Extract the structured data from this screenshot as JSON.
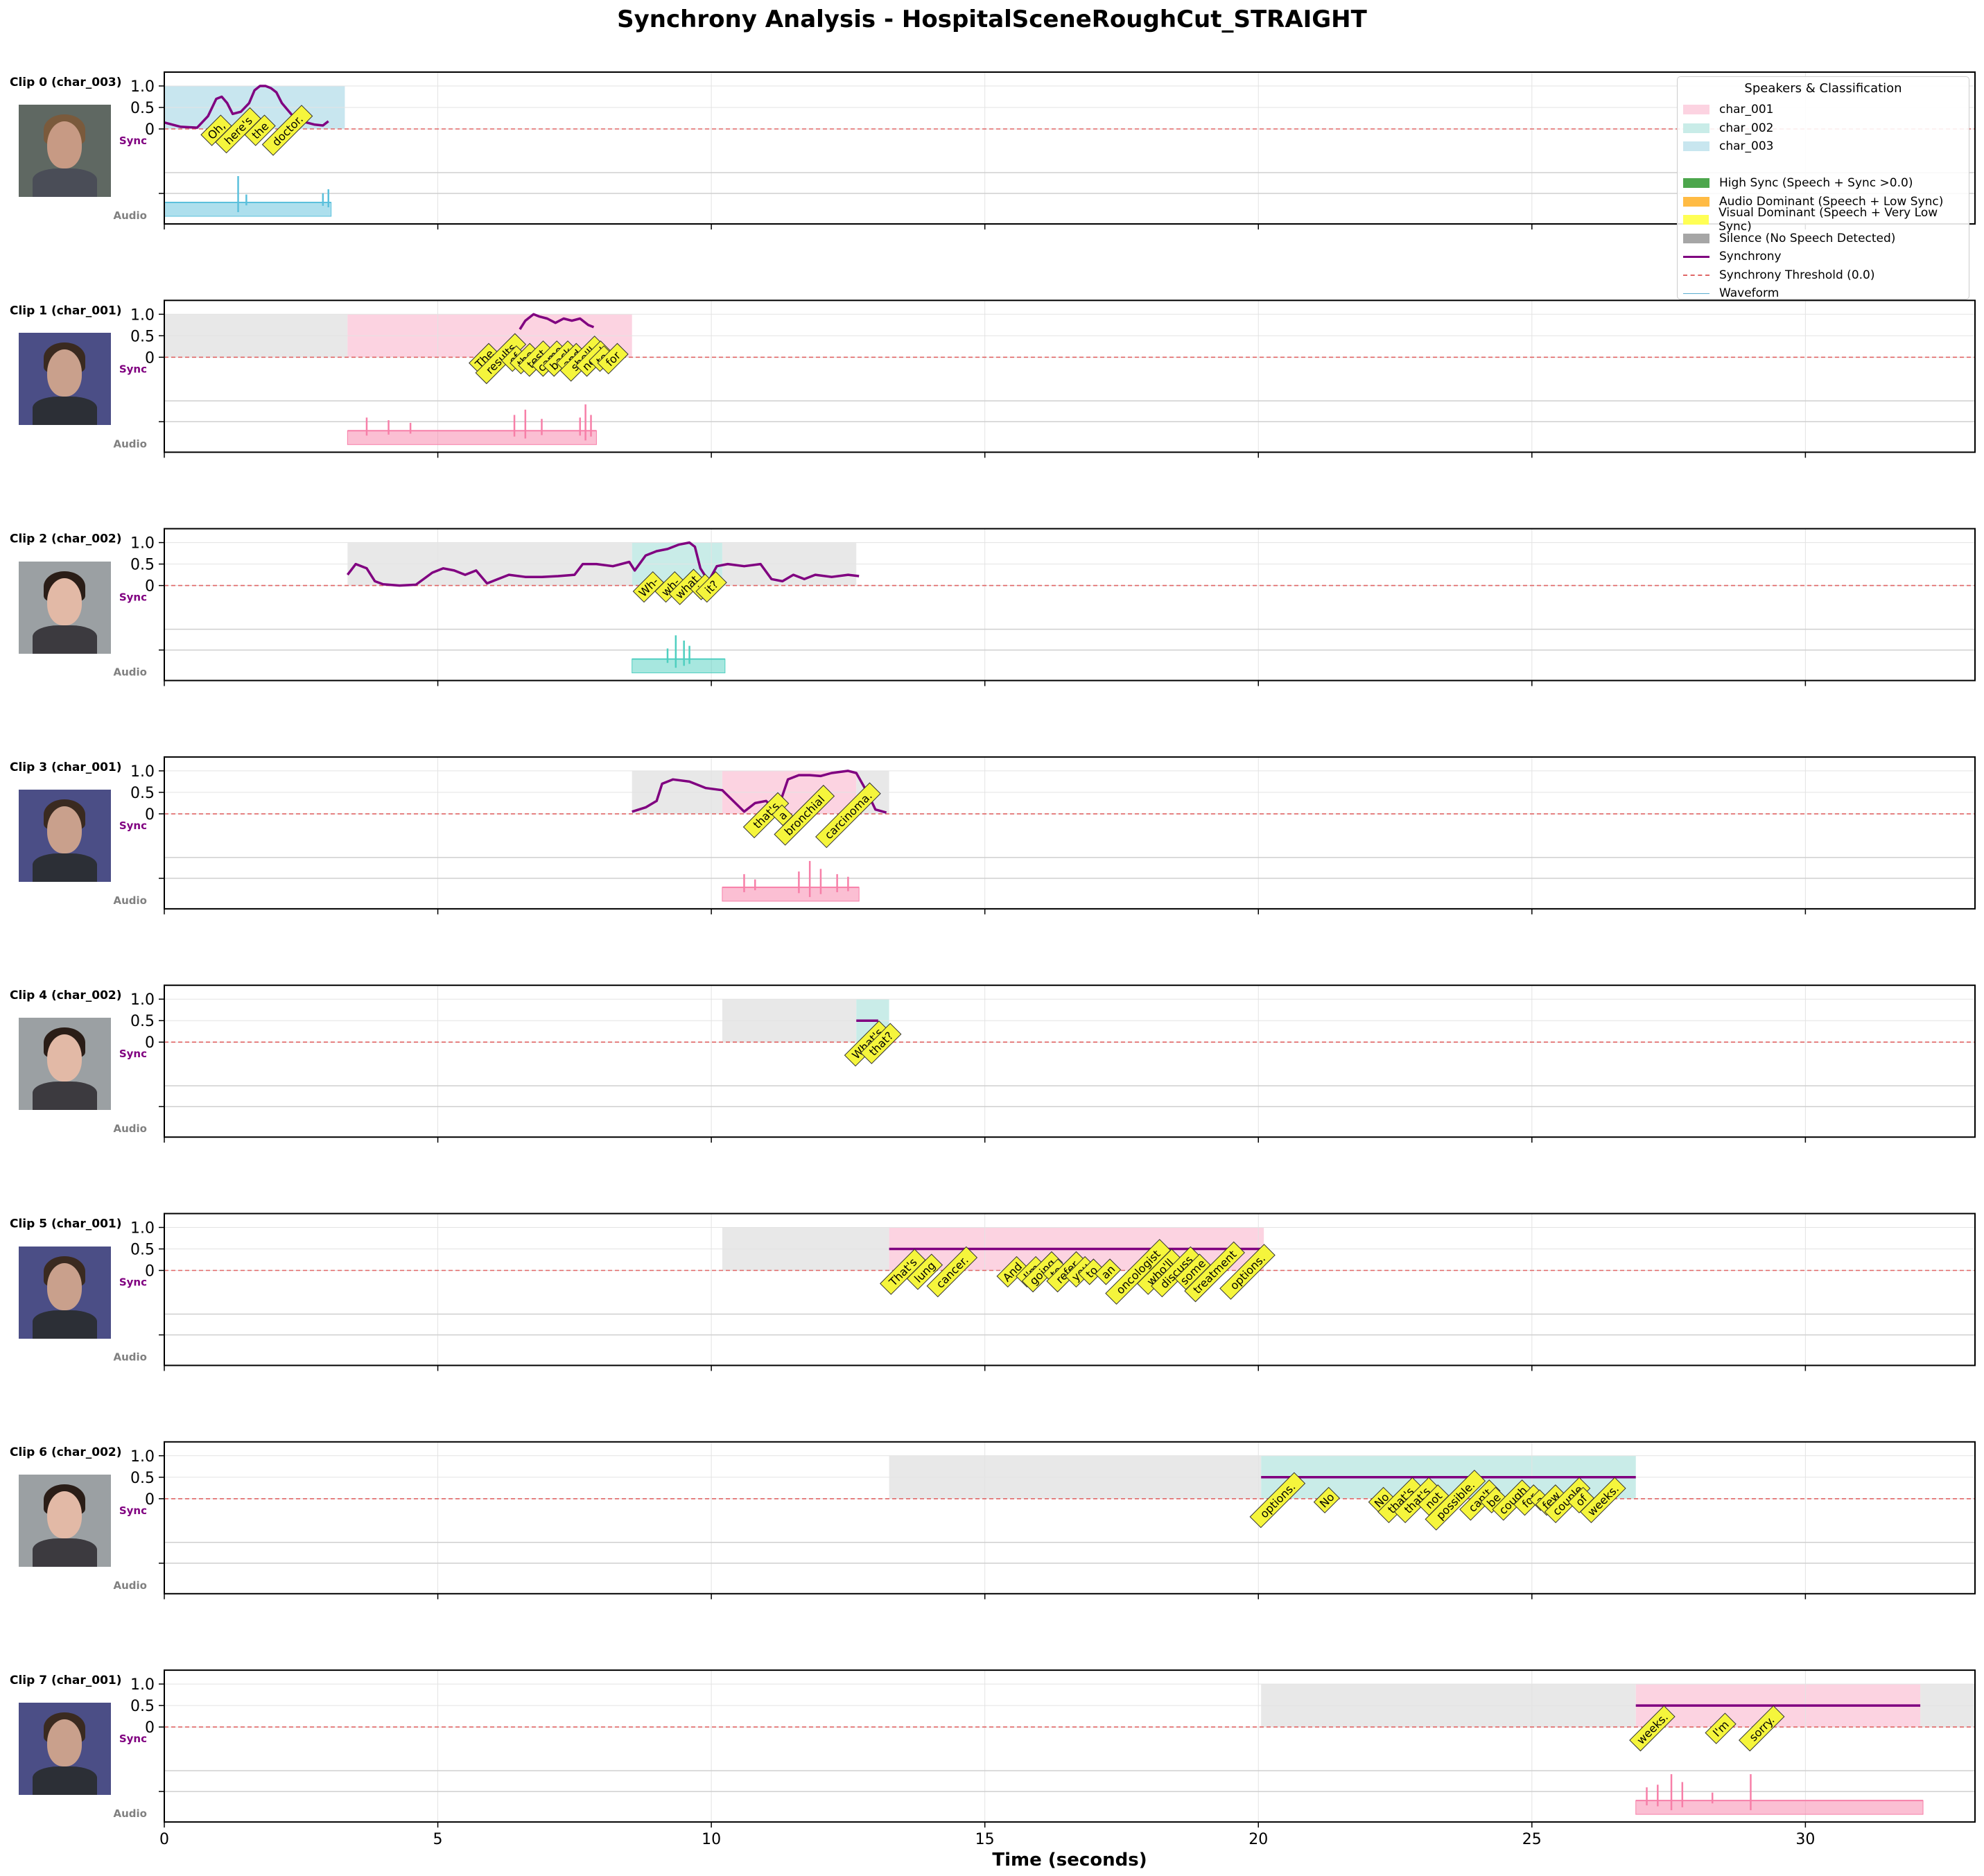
{
  "title": "Synchrony Analysis - HospitalSceneRoughCut_STRAIGHT",
  "xlabel": "Time (seconds)",
  "legend": {
    "title": "Speakers & Classification",
    "items": [
      {
        "label": "char_001",
        "kind": "patch",
        "color": "#fcd3e1"
      },
      {
        "label": "char_002",
        "kind": "patch",
        "color": "#c9ece8"
      },
      {
        "label": "char_003",
        "kind": "patch",
        "color": "#c8e6ef"
      },
      {
        "label": "",
        "kind": "blank",
        "color": ""
      },
      {
        "label": "High Sync (Speech + Sync >0.0)",
        "kind": "patch",
        "color": "#4ca64c"
      },
      {
        "label": "Audio Dominant (Speech + Low Sync)",
        "kind": "patch",
        "color": "#ffbb44"
      },
      {
        "label": "Visual Dominant (Speech + Very Low Sync)",
        "kind": "patch",
        "color": "#ffff55"
      },
      {
        "label": "Silence (No Speech Detected)",
        "kind": "patch",
        "color": "#a6a6a6"
      },
      {
        "label": "Synchrony",
        "kind": "line",
        "color": "#800080"
      },
      {
        "label": "Synchrony Threshold (0.0)",
        "kind": "dash",
        "color": "#e06666"
      },
      {
        "label": "Waveform",
        "kind": "thin",
        "color": "#5aaed0"
      }
    ]
  },
  "colors": {
    "char_001": "#f77fa8",
    "char_001_bg": "#fcd3e1",
    "char_002": "#4fcfc0",
    "char_002_bg": "#c9ece8",
    "char_003": "#5bc0dc",
    "char_003_bg": "#c8e6ef",
    "silence_bg": "#e8e8e8",
    "sync": "#800080",
    "threshold": "#e06666",
    "word_box": "#f5f53c"
  },
  "chart_data": {
    "type": "line",
    "xlim": [
      0,
      33.1
    ],
    "x_ticks": [
      0,
      5,
      10,
      15,
      20,
      25,
      30
    ],
    "y_ticks": [
      "0",
      "0.5",
      "1.0"
    ],
    "sync_label": "Sync",
    "audio_label": "Audio",
    "threshold": 0.0,
    "clips": [
      {
        "label": "Clip 0 (char_003)",
        "speaker": "char_003",
        "context": [],
        "speech": [
          0.0,
          3.3
        ],
        "sync": {
          "x": [
            0,
            0.3,
            0.6,
            0.8,
            0.95,
            1.05,
            1.15,
            1.25,
            1.4,
            1.55,
            1.65,
            1.75,
            1.85,
            1.95,
            2.05,
            2.15,
            2.25,
            2.35,
            2.45,
            2.6,
            2.75,
            2.9,
            3.0
          ],
          "y": [
            0.15,
            0.05,
            0.03,
            0.3,
            0.7,
            0.75,
            0.6,
            0.35,
            0.4,
            0.6,
            0.9,
            1.0,
            1.0,
            0.95,
            0.85,
            0.6,
            0.45,
            0.3,
            0.2,
            0.15,
            0.1,
            0.08,
            0.18
          ]
        },
        "words": [
          {
            "t": 0.95,
            "w": "Oh,"
          },
          {
            "t": 1.35,
            "w": "here's"
          },
          {
            "t": 1.75,
            "w": "the"
          },
          {
            "t": 2.25,
            "w": "doctor."
          }
        ],
        "audio": {
          "start": 0.0,
          "end": 3.05,
          "spikes": [
            {
              "t": 1.35,
              "h": 1.0
            },
            {
              "t": 1.5,
              "h": 0.3
            },
            {
              "t": 2.9,
              "h": 0.35
            },
            {
              "t": 3.0,
              "h": 0.5
            }
          ]
        }
      },
      {
        "label": "Clip 1 (char_001)",
        "speaker": "char_001",
        "context": [
          [
            0.0,
            3.35
          ]
        ],
        "speech": [
          3.35,
          8.55
        ],
        "sync": {
          "x": [
            6.5,
            6.6,
            6.75,
            6.85,
            7.0,
            7.15,
            7.3,
            7.45,
            7.6,
            7.75,
            7.85
          ],
          "y": [
            0.65,
            0.85,
            1.0,
            0.95,
            0.9,
            0.8,
            0.9,
            0.85,
            0.9,
            0.75,
            0.7
          ]
        },
        "words": [
          {
            "t": 5.85,
            "w": "The"
          },
          {
            "t": 6.15,
            "w": "results"
          },
          {
            "t": 6.4,
            "w": "of"
          },
          {
            "t": 6.6,
            "w": "the"
          },
          {
            "t": 6.8,
            "w": "test"
          },
          {
            "t": 7.05,
            "w": "came"
          },
          {
            "t": 7.25,
            "w": "back"
          },
          {
            "t": 7.45,
            "w": "and"
          },
          {
            "t": 7.65,
            "w": "she'll"
          },
          {
            "t": 7.85,
            "w": "need"
          },
          {
            "t": 8.0,
            "w": "to"
          },
          {
            "t": 8.2,
            "w": "for"
          }
        ],
        "audio": {
          "start": 3.35,
          "end": 7.9,
          "spikes": [
            {
              "t": 3.7,
              "h": 0.5
            },
            {
              "t": 4.1,
              "h": 0.4
            },
            {
              "t": 4.5,
              "h": 0.3
            },
            {
              "t": 6.4,
              "h": 0.6
            },
            {
              "t": 6.6,
              "h": 0.8
            },
            {
              "t": 6.9,
              "h": 0.45
            },
            {
              "t": 7.6,
              "h": 0.5
            },
            {
              "t": 7.7,
              "h": 1.0
            },
            {
              "t": 7.8,
              "h": 0.6
            }
          ]
        }
      },
      {
        "label": "Clip 2 (char_002)",
        "speaker": "char_002",
        "context": [
          [
            3.35,
            8.55
          ],
          [
            10.2,
            12.65
          ]
        ],
        "speech": [
          8.55,
          10.2
        ],
        "sync": {
          "x": [
            3.35,
            3.5,
            3.7,
            3.85,
            4.0,
            4.3,
            4.6,
            4.9,
            5.1,
            5.3,
            5.5,
            5.7,
            5.9,
            6.1,
            6.3,
            6.6,
            6.9,
            7.2,
            7.5,
            7.65,
            7.9,
            8.2,
            8.5,
            8.6,
            8.8,
            9.0,
            9.2,
            9.4,
            9.6,
            9.7,
            9.8,
            9.95,
            10.1,
            10.3,
            10.6,
            10.9,
            11.1,
            11.3,
            11.5,
            11.7,
            11.9,
            12.2,
            12.5,
            12.7
          ],
          "y": [
            0.25,
            0.5,
            0.4,
            0.1,
            0.03,
            0.0,
            0.02,
            0.3,
            0.4,
            0.35,
            0.25,
            0.35,
            0.05,
            0.15,
            0.25,
            0.2,
            0.2,
            0.22,
            0.25,
            0.5,
            0.5,
            0.45,
            0.55,
            0.35,
            0.7,
            0.8,
            0.85,
            0.95,
            1.0,
            0.9,
            0.4,
            0.1,
            0.45,
            0.5,
            0.45,
            0.5,
            0.15,
            0.1,
            0.25,
            0.15,
            0.25,
            0.2,
            0.25,
            0.22
          ]
        },
        "words": [
          {
            "t": 8.85,
            "w": "Wh-"
          },
          {
            "t": 9.25,
            "w": "wh-"
          },
          {
            "t": 9.55,
            "w": "what"
          },
          {
            "t": 9.85,
            "w": "is"
          },
          {
            "t": 10.0,
            "w": "it?"
          }
        ],
        "audio": {
          "start": 8.55,
          "end": 10.25,
          "spikes": [
            {
              "t": 9.2,
              "h": 0.4
            },
            {
              "t": 9.35,
              "h": 0.9
            },
            {
              "t": 9.5,
              "h": 0.7
            },
            {
              "t": 9.6,
              "h": 0.5
            }
          ]
        }
      },
      {
        "label": "Clip 3 (char_001)",
        "speaker": "char_001",
        "context": [
          [
            8.55,
            10.2
          ],
          [
            12.65,
            13.25
          ]
        ],
        "speech": [
          10.2,
          12.65
        ],
        "sync": {
          "x": [
            8.55,
            8.8,
            9.0,
            9.1,
            9.3,
            9.6,
            9.9,
            10.2,
            10.4,
            10.6,
            10.8,
            11.0,
            11.2,
            11.4,
            11.6,
            11.8,
            12.0,
            12.2,
            12.5,
            12.65,
            12.85,
            13.0,
            13.2
          ],
          "y": [
            0.05,
            0.15,
            0.3,
            0.7,
            0.8,
            0.75,
            0.6,
            0.55,
            0.3,
            0.05,
            0.25,
            0.3,
            0.05,
            0.8,
            0.9,
            0.9,
            0.88,
            0.95,
            1.0,
            0.95,
            0.5,
            0.1,
            0.03
          ]
        },
        "words": [
          {
            "t": 11.0,
            "w": "that's"
          },
          {
            "t": 11.3,
            "w": "a"
          },
          {
            "t": 11.7,
            "w": "bronchial"
          },
          {
            "t": 12.5,
            "w": "carcinoma."
          }
        ],
        "audio": {
          "start": 10.2,
          "end": 12.7,
          "spikes": [
            {
              "t": 10.6,
              "h": 0.5
            },
            {
              "t": 10.8,
              "h": 0.3
            },
            {
              "t": 11.6,
              "h": 0.6
            },
            {
              "t": 11.8,
              "h": 1.0
            },
            {
              "t": 12.0,
              "h": 0.7
            },
            {
              "t": 12.3,
              "h": 0.5
            },
            {
              "t": 12.5,
              "h": 0.4
            }
          ]
        }
      },
      {
        "label": "Clip 4 (char_002)",
        "speaker": "char_002",
        "context": [
          [
            10.2,
            12.65
          ]
        ],
        "speech": [
          12.65,
          13.25
        ],
        "sync": {
          "x": [
            12.65,
            13.05
          ],
          "y": [
            0.5,
            0.5
          ]
        },
        "words": [
          {
            "t": 12.85,
            "w": "What's"
          },
          {
            "t": 13.1,
            "w": "that?"
          }
        ],
        "audio": null
      },
      {
        "label": "Clip 5 (char_001)",
        "speaker": "char_001",
        "context": [
          [
            10.2,
            13.25
          ]
        ],
        "speech": [
          13.25,
          20.1
        ],
        "sync": {
          "x": [
            13.25,
            20.1
          ],
          "y": [
            0.5,
            0.5
          ]
        },
        "words": [
          {
            "t": 13.5,
            "w": "That's"
          },
          {
            "t": 13.9,
            "w": "lung"
          },
          {
            "t": 14.4,
            "w": "cancer."
          },
          {
            "t": 15.5,
            "w": "And"
          },
          {
            "t": 15.85,
            "w": "I'm"
          },
          {
            "t": 16.05,
            "w": "going"
          },
          {
            "t": 16.3,
            "w": "to"
          },
          {
            "t": 16.5,
            "w": "refer"
          },
          {
            "t": 16.75,
            "w": "you"
          },
          {
            "t": 16.95,
            "w": "to"
          },
          {
            "t": 17.25,
            "w": "an"
          },
          {
            "t": 17.8,
            "w": "oncologist"
          },
          {
            "t": 18.2,
            "w": "who'll"
          },
          {
            "t": 18.5,
            "w": "discuss"
          },
          {
            "t": 18.8,
            "w": "some"
          },
          {
            "t": 19.2,
            "w": "treatment"
          },
          {
            "t": 19.8,
            "w": "options."
          }
        ],
        "audio": null
      },
      {
        "label": "Clip 6 (char_002)",
        "speaker": "char_002",
        "context": [
          [
            13.25,
            20.05
          ]
        ],
        "speech": [
          20.05,
          26.9
        ],
        "sync": {
          "x": [
            20.05,
            26.9
          ],
          "y": [
            0.5,
            0.5
          ]
        },
        "words": [
          {
            "t": 20.35,
            "w": "options."
          },
          {
            "t": 21.25,
            "w": "No"
          },
          {
            "t": 22.25,
            "w": "No"
          },
          {
            "t": 22.6,
            "w": "that's"
          },
          {
            "t": 22.9,
            "w": "that's"
          },
          {
            "t": 23.2,
            "w": "not"
          },
          {
            "t": 23.6,
            "w": "possible."
          },
          {
            "t": 24.05,
            "w": "can't"
          },
          {
            "t": 24.3,
            "w": "be"
          },
          {
            "t": 24.65,
            "w": "cough"
          },
          {
            "t": 24.95,
            "w": "for"
          },
          {
            "t": 25.15,
            "w": "a"
          },
          {
            "t": 25.35,
            "w": "few"
          },
          {
            "t": 25.65,
            "w": "couple"
          },
          {
            "t": 25.9,
            "w": "of"
          },
          {
            "t": 26.3,
            "w": "weeks."
          }
        ],
        "audio": null
      },
      {
        "label": "Clip 7 (char_001)",
        "speaker": "char_001",
        "context": [
          [
            20.05,
            26.9
          ],
          [
            32.1,
            33.1
          ]
        ],
        "speech": [
          26.9,
          32.1
        ],
        "sync": {
          "x": [
            26.9,
            32.1
          ],
          "y": [
            0.5,
            0.5
          ]
        },
        "words": [
          {
            "t": 27.2,
            "w": "weeks."
          },
          {
            "t": 28.45,
            "w": "I'm"
          },
          {
            "t": 29.2,
            "w": "sorry."
          }
        ],
        "audio": {
          "start": 26.9,
          "end": 32.15,
          "spikes": [
            {
              "t": 27.1,
              "h": 0.5
            },
            {
              "t": 27.3,
              "h": 0.6
            },
            {
              "t": 27.55,
              "h": 1.0
            },
            {
              "t": 27.75,
              "h": 0.7
            },
            {
              "t": 28.3,
              "h": 0.3
            },
            {
              "t": 29.0,
              "h": 1.0
            }
          ]
        }
      }
    ]
  }
}
